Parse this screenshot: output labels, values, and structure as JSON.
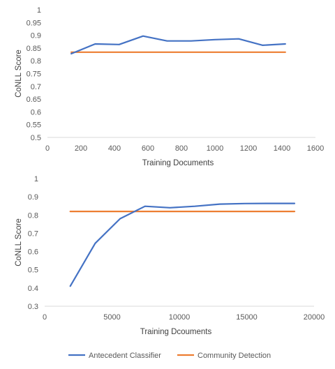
{
  "colors": {
    "antecedent": "#4472C4",
    "community": "#ED7D31",
    "axis": "#D9D9D9",
    "text": "#595959"
  },
  "legend": {
    "placement": "bottom",
    "items": [
      "Antecedent Classifier",
      "Community Detection"
    ]
  },
  "chart_data": [
    {
      "type": "line",
      "xlabel": "Training Documents",
      "ylabel": "CoNLL Score",
      "xlim": [
        0,
        1600
      ],
      "ylim": [
        0.5,
        1
      ],
      "xticks": [
        0,
        200,
        400,
        600,
        800,
        1000,
        1200,
        1400,
        1600
      ],
      "yticks": [
        0.5,
        0.55,
        0.6,
        0.65,
        0.7,
        0.75,
        0.8,
        0.85,
        0.9,
        0.95,
        1
      ],
      "ytick_labels": [
        "0.5",
        "0.55",
        "0.6",
        "0.65",
        "0.7",
        "0.75",
        "0.8",
        "0.85",
        "0.9",
        "0.95",
        "1"
      ],
      "grid": false,
      "series": [
        {
          "name": "Antecedent Classifier",
          "x": [
            142,
            285,
            428,
            571,
            714,
            857,
            1000,
            1142,
            1285,
            1420
          ],
          "y": [
            0.828,
            0.866,
            0.864,
            0.897,
            0.878,
            0.878,
            0.883,
            0.886,
            0.861,
            0.866
          ]
        },
        {
          "name": "Community Detection",
          "x": [
            142,
            1420
          ],
          "y": [
            0.834,
            0.834
          ]
        }
      ]
    },
    {
      "type": "line",
      "xlabel": "Training Dcouments",
      "ylabel": "CoNLL Score",
      "xlim": [
        0,
        20000
      ],
      "ylim": [
        0.3,
        1
      ],
      "xticks": [
        0,
        5000,
        10000,
        15000,
        20000
      ],
      "yticks": [
        0.3,
        0.4,
        0.5,
        0.6,
        0.7,
        0.8,
        0.9,
        1
      ],
      "ytick_labels": [
        "0.3",
        "0.4",
        "0.5",
        "0.6",
        "0.7",
        "0.8",
        "0.9",
        "1"
      ],
      "grid": false,
      "series": [
        {
          "name": "Antecedent Classifier",
          "x": [
            1900,
            3750,
            5600,
            7450,
            9300,
            11150,
            13000,
            14850,
            16700,
            18550
          ],
          "y": [
            0.41,
            0.645,
            0.78,
            0.848,
            0.84,
            0.848,
            0.86,
            0.863,
            0.864,
            0.864
          ]
        },
        {
          "name": "Community Detection",
          "x": [
            1900,
            18550
          ],
          "y": [
            0.82,
            0.82
          ]
        }
      ]
    }
  ]
}
